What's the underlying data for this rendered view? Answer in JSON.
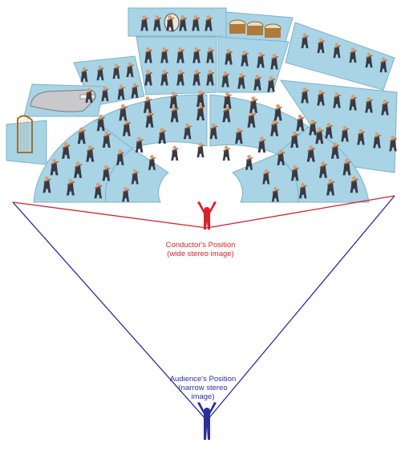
{
  "conductor": {
    "title": "Conductor's Position",
    "subtitle": "(wide stereo image)",
    "color": "#d9232b"
  },
  "audience": {
    "line1": "Audience's Position",
    "line2": "(narrow stereo",
    "line3": "image)",
    "color": "#2b2f9c"
  },
  "stage": {
    "platform_color": "#a8d4e6",
    "platform_edge": "#7fb3c9",
    "musician_color": "#3a3a44",
    "skin_color": "#d4a07a",
    "instrument_color": "#9b5a2a"
  }
}
